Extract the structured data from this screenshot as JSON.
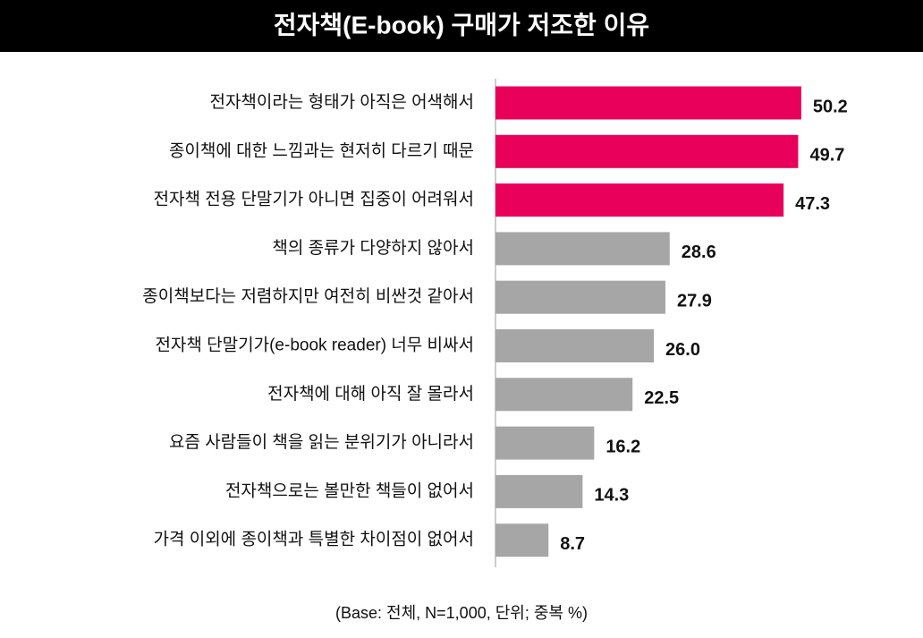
{
  "chart_data": {
    "type": "hbar",
    "title": "전자책(E-book) 구매가 저조한 이유",
    "note": "(Base: 전체, N=1,000, 단위; 중복 %)",
    "categories": [
      "전자책이라는 형태가 아직은 어색해서",
      "종이책에 대한 느낌과는 현저히 다르기 때문",
      "전자책 전용 단말기가 아니면 집중이 어려워서",
      "책의 종류가 다양하지 않아서",
      "종이책보다는 저렴하지만 여전히 비싼것 같아서",
      "전자책 단말기가(e-book reader) 너무 비싸서",
      "전자책에 대해 아직 잘 몰라서",
      "요즘 사람들이 책을 읽는 분위기가 아니라서",
      "전자책으로는 볼만한 책들이 없어서",
      "가격 이외에 종이책과 특별한 차이점이 없어서"
    ],
    "values": [
      50.2,
      49.7,
      47.3,
      28.6,
      27.9,
      26.0,
      22.5,
      16.2,
      14.3,
      8.7
    ],
    "value_labels": [
      "50.2",
      "49.7",
      "47.3",
      "28.6",
      "27.9",
      "26.0",
      "22.5",
      "16.2",
      "14.3",
      "8.7"
    ],
    "colors": [
      "#e8005a",
      "#e8005a",
      "#e8005a",
      "#a6a6a6",
      "#a6a6a6",
      "#a6a6a6",
      "#a6a6a6",
      "#a6a6a6",
      "#a6a6a6",
      "#a6a6a6"
    ]
  }
}
